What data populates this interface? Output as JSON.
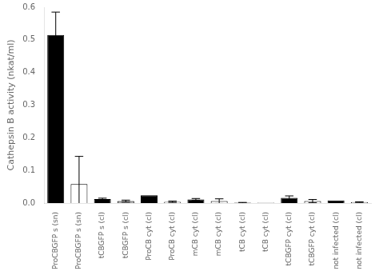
{
  "chart_data": {
    "type": "bar",
    "categories": [
      "ProCBGFP s (sn)",
      "ProCBGFP s (sn)",
      "tCBGFP s (cl)",
      "tCBGFP s (cl)",
      "ProCB cyt (cl)",
      "ProCB cyt (cl)",
      "mCB cyt (cl)",
      "mCB cyt (cl)",
      "tCB cyt (cl)",
      "tCB cyt (cl)",
      "tCBGFP cyt (cl)",
      "tCBGFP cyt (cl)",
      "not infected (cl)",
      "not infected (cl)"
    ],
    "values": [
      0.515,
      0.058,
      0.012,
      0.006,
      0.024,
      0.004,
      0.011,
      0.006,
      0.001,
      0.001,
      0.016,
      0.006,
      0.008,
      0.003
    ],
    "errors": [
      0.07,
      0.085,
      0.003,
      0.003,
      0.0,
      0.002,
      0.003,
      0.007,
      0.001,
      0.0,
      0.006,
      0.005,
      0.0,
      0.001
    ],
    "colors": [
      "#000000",
      "#ffffff",
      "#000000",
      "#aaaaaa",
      "#000000",
      "#ffffff",
      "#000000",
      "#ffffff",
      "#000000",
      "#ffffff",
      "#000000",
      "#ffffff",
      "#000000",
      "#ffffff"
    ],
    "ylabel": "Cathepsin B activity (nkat/ml)",
    "ylim": [
      0,
      0.6
    ],
    "yticks": [
      {
        "value": 0,
        "label": "0.0"
      },
      0.1,
      0.2,
      0.3,
      0.4,
      0.5,
      0.6
    ],
    "grid": false
  }
}
